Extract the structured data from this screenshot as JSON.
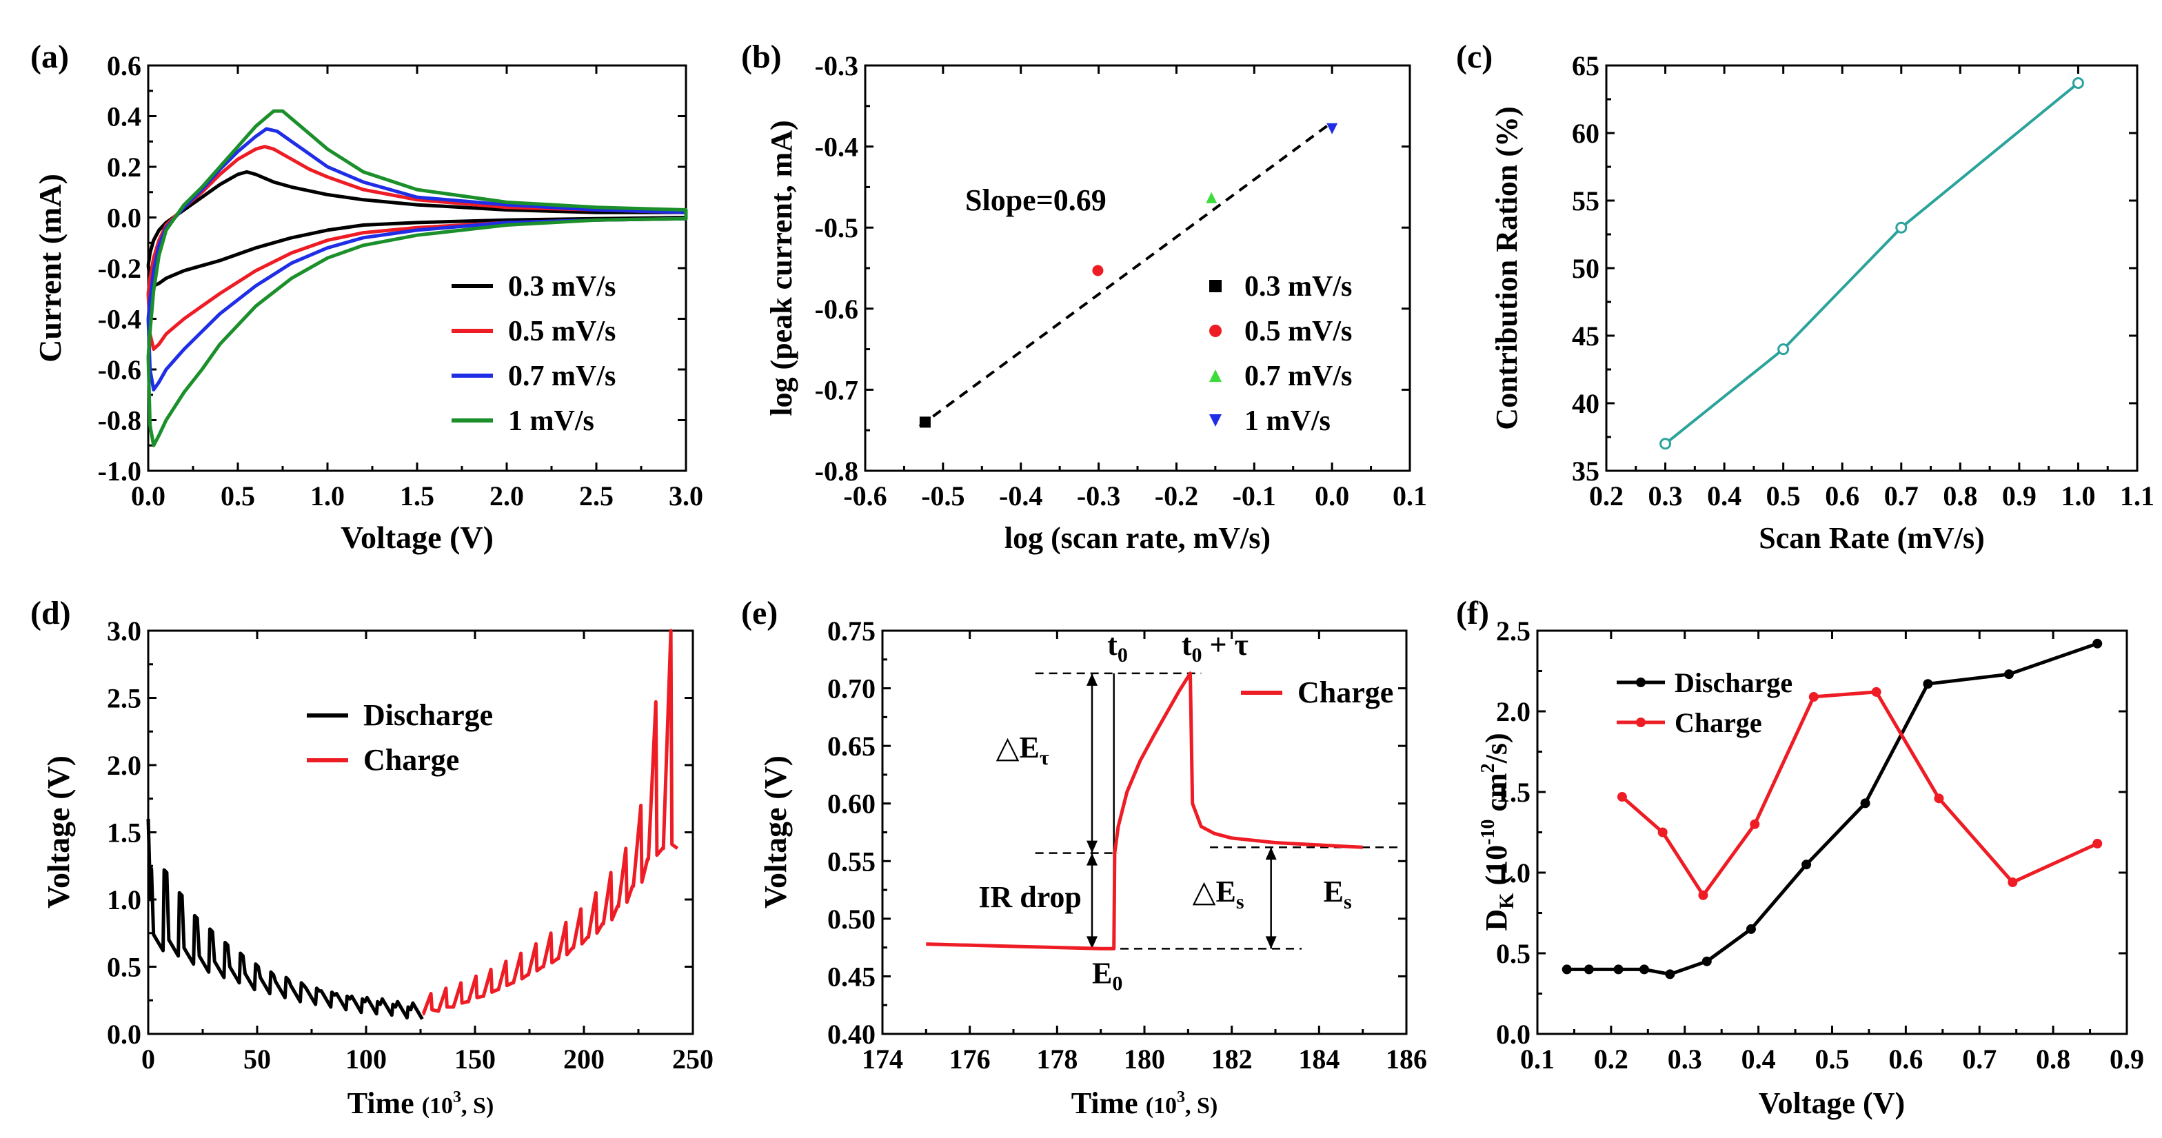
{
  "colors": {
    "black": "#000000",
    "red": "#ee1c24",
    "blue": "#1f2ee6",
    "green": "#1a8f2a",
    "bright_green": "#3ddc3d",
    "teal": "#2aa39b",
    "axis": "#000000"
  },
  "chart_data": [
    {
      "panel_label": "(a)",
      "type": "line",
      "xlabel": "Voltage (V)",
      "ylabel": "Current (mA)",
      "xlim": [
        0.0,
        3.0
      ],
      "ylim": [
        -1.0,
        0.6
      ],
      "xticks": [
        "0.0",
        "0.5",
        "1.0",
        "1.5",
        "2.0",
        "2.5",
        "3.0"
      ],
      "yticks": [
        "-1.0",
        "-0.8",
        "-0.6",
        "-0.4",
        "-0.2",
        "0.0",
        "0.2",
        "0.4",
        "0.6"
      ],
      "legend": [
        "0.3 mV/s",
        "0.5 mV/s",
        "0.7 mV/s",
        "1 mV/s"
      ],
      "legend_position": "bottom-right",
      "series": [
        {
          "name": "0.3 mV/s",
          "color_key": "black",
          "x": [
            0,
            0.01,
            0.03,
            0.06,
            0.1,
            0.2,
            0.3,
            0.4,
            0.5,
            0.55,
            0.6,
            0.7,
            0.8,
            1.0,
            1.2,
            1.5,
            2.0,
            2.5,
            3.0,
            3.0,
            2.5,
            2.0,
            1.5,
            1.2,
            1.0,
            0.8,
            0.6,
            0.4,
            0.3,
            0.2,
            0.1,
            0.06,
            0.03,
            0.01,
            0
          ],
          "y": [
            -0.19,
            -0.14,
            -0.09,
            -0.05,
            -0.02,
            0.03,
            0.08,
            0.13,
            0.17,
            0.18,
            0.17,
            0.14,
            0.12,
            0.09,
            0.07,
            0.05,
            0.03,
            0.02,
            0.02,
            0.0,
            -0.005,
            -0.01,
            -0.02,
            -0.03,
            -0.05,
            -0.08,
            -0.12,
            -0.17,
            -0.19,
            -0.21,
            -0.24,
            -0.26,
            -0.27,
            -0.24,
            -0.19
          ]
        },
        {
          "name": "0.5 mV/s",
          "color_key": "red",
          "x": [
            0,
            0.01,
            0.03,
            0.06,
            0.1,
            0.2,
            0.3,
            0.4,
            0.5,
            0.6,
            0.65,
            0.7,
            0.8,
            0.9,
            1.0,
            1.2,
            1.5,
            2.0,
            2.5,
            3.0,
            3.0,
            2.5,
            2.0,
            1.5,
            1.2,
            1.0,
            0.8,
            0.6,
            0.4,
            0.3,
            0.2,
            0.1,
            0.06,
            0.03,
            0.01,
            0
          ],
          "y": [
            -0.3,
            -0.24,
            -0.16,
            -0.09,
            -0.03,
            0.04,
            0.1,
            0.17,
            0.23,
            0.27,
            0.28,
            0.27,
            0.23,
            0.19,
            0.16,
            0.11,
            0.07,
            0.04,
            0.03,
            0.02,
            -0.005,
            -0.01,
            -0.02,
            -0.04,
            -0.06,
            -0.09,
            -0.14,
            -0.21,
            -0.3,
            -0.35,
            -0.4,
            -0.46,
            -0.5,
            -0.52,
            -0.46,
            -0.3
          ]
        },
        {
          "name": "0.7 mV/s",
          "color_key": "blue",
          "x": [
            0,
            0.01,
            0.03,
            0.06,
            0.1,
            0.2,
            0.3,
            0.4,
            0.5,
            0.6,
            0.66,
            0.72,
            0.8,
            0.9,
            1.0,
            1.2,
            1.5,
            2.0,
            2.5,
            3.0,
            3.0,
            2.5,
            2.0,
            1.5,
            1.2,
            1.0,
            0.8,
            0.6,
            0.4,
            0.3,
            0.2,
            0.1,
            0.06,
            0.03,
            0.01,
            0
          ],
          "y": [
            -0.4,
            -0.32,
            -0.21,
            -0.11,
            -0.04,
            0.04,
            0.11,
            0.19,
            0.26,
            0.32,
            0.35,
            0.34,
            0.3,
            0.25,
            0.2,
            0.14,
            0.08,
            0.05,
            0.03,
            0.02,
            -0.005,
            -0.01,
            -0.02,
            -0.05,
            -0.08,
            -0.12,
            -0.18,
            -0.27,
            -0.38,
            -0.45,
            -0.52,
            -0.6,
            -0.65,
            -0.68,
            -0.6,
            -0.4
          ]
        },
        {
          "name": "1 mV/s",
          "color_key": "green",
          "x": [
            0,
            0.01,
            0.03,
            0.06,
            0.1,
            0.2,
            0.3,
            0.4,
            0.5,
            0.6,
            0.7,
            0.75,
            0.8,
            0.9,
            1.0,
            1.2,
            1.5,
            2.0,
            2.5,
            3.0,
            3.0,
            2.5,
            2.0,
            1.5,
            1.2,
            1.0,
            0.8,
            0.6,
            0.4,
            0.3,
            0.2,
            0.1,
            0.06,
            0.03,
            0.01,
            0
          ],
          "y": [
            -0.55,
            -0.45,
            -0.29,
            -0.15,
            -0.05,
            0.05,
            0.12,
            0.2,
            0.28,
            0.36,
            0.42,
            0.42,
            0.39,
            0.33,
            0.27,
            0.18,
            0.11,
            0.06,
            0.04,
            0.03,
            -0.005,
            -0.01,
            -0.03,
            -0.07,
            -0.11,
            -0.16,
            -0.24,
            -0.35,
            -0.5,
            -0.6,
            -0.69,
            -0.8,
            -0.86,
            -0.9,
            -0.82,
            -0.55
          ]
        }
      ]
    },
    {
      "panel_label": "(b)",
      "type": "scatter",
      "xlabel": "log (scan rate, mV/s)",
      "ylabel": "log (peak current, mA)",
      "xlim": [
        -0.6,
        0.1
      ],
      "ylim": [
        -0.8,
        -0.3
      ],
      "xticks": [
        "-0.6",
        "-0.5",
        "-0.4",
        "-0.3",
        "-0.2",
        "-0.1",
        "0.0",
        "0.1"
      ],
      "yticks": [
        "-0.8",
        "-0.7",
        "-0.6",
        "-0.5",
        "-0.4",
        "-0.3"
      ],
      "annotation": "Slope=0.69",
      "fit_line": {
        "x": [
          -0.53,
          0.0
        ],
        "y": [
          -0.745,
          -0.37
        ]
      },
      "legend": [
        "0.3 mV/s",
        "0.5 mV/s",
        "0.7 mV/s",
        "1 mV/s"
      ],
      "legend_position": "bottom-right",
      "series": [
        {
          "name": "0.3 mV/s",
          "color_key": "black",
          "marker": "square",
          "x": [
            -0.523
          ],
          "y": [
            -0.74
          ]
        },
        {
          "name": "0.5 mV/s",
          "color_key": "red",
          "marker": "circle",
          "x": [
            -0.301
          ],
          "y": [
            -0.553
          ]
        },
        {
          "name": "0.7 mV/s",
          "color_key": "bright_green",
          "marker": "triangle-up",
          "x": [
            -0.155
          ],
          "y": [
            -0.463
          ]
        },
        {
          "name": "1 mV/s",
          "color_key": "blue",
          "marker": "triangle-down",
          "x": [
            0.0
          ],
          "y": [
            -0.378
          ]
        }
      ]
    },
    {
      "panel_label": "(c)",
      "type": "line",
      "xlabel": "Scan Rate (mV/s)",
      "ylabel": "Contribution Ration (%)",
      "xlim": [
        0.2,
        1.1
      ],
      "ylim": [
        35,
        65
      ],
      "xticks": [
        "0.2",
        "0.3",
        "0.4",
        "0.5",
        "0.6",
        "0.7",
        "0.8",
        "0.9",
        "1.0",
        "1.1"
      ],
      "yticks": [
        "35",
        "40",
        "45",
        "50",
        "55",
        "60",
        "65"
      ],
      "series": [
        {
          "name": "Contribution",
          "color_key": "teal",
          "marker": "circle-open",
          "x": [
            0.3,
            0.5,
            0.7,
            1.0
          ],
          "y": [
            37,
            44,
            53,
            63.7
          ]
        }
      ]
    },
    {
      "panel_label": "(d)",
      "type": "line",
      "xlabel_main": "Time ",
      "xlabel_unit": "(10",
      "xlabel_sup": "3",
      "xlabel_tail": ", S)",
      "ylabel": "Voltage (V)",
      "xlim": [
        0,
        250
      ],
      "ylim": [
        0.0,
        3.0
      ],
      "xticks": [
        "0",
        "50",
        "100",
        "150",
        "200",
        "250"
      ],
      "yticks": [
        "0.0",
        "0.5",
        "1.0",
        "1.5",
        "2.0",
        "2.5",
        "3.0"
      ],
      "legend": [
        "Discharge",
        "Charge"
      ],
      "legend_position": "top-center",
      "discharge": {
        "name": "Discharge",
        "color_key": "black",
        "t_start": 0,
        "t_end": 126,
        "pulses": 18,
        "relax_v": [
          1.25,
          1.22,
          1.05,
          0.88,
          0.78,
          0.68,
          0.6,
          0.52,
          0.46,
          0.42,
          0.38,
          0.34,
          0.31,
          0.28,
          0.26,
          0.24,
          0.22,
          0.2
        ],
        "end_v": [
          0.62,
          0.58,
          0.52,
          0.46,
          0.42,
          0.38,
          0.33,
          0.3,
          0.27,
          0.24,
          0.22,
          0.2,
          0.18,
          0.16,
          0.15,
          0.14,
          0.12,
          0.11
        ]
      },
      "charge": {
        "name": "Charge",
        "color_key": "red",
        "t_start": 126,
        "t_end": 243,
        "pulses": 17,
        "base_v": [
          0.15,
          0.17,
          0.2,
          0.24,
          0.28,
          0.33,
          0.38,
          0.44,
          0.5,
          0.56,
          0.64,
          0.72,
          0.82,
          0.95,
          1.1,
          1.3,
          1.38
        ],
        "peak_v": [
          0.3,
          0.34,
          0.38,
          0.43,
          0.48,
          0.54,
          0.6,
          0.67,
          0.75,
          0.83,
          0.93,
          1.05,
          1.2,
          1.38,
          1.7,
          2.47,
          3.0
        ]
      }
    },
    {
      "panel_label": "(e)",
      "type": "line",
      "xlabel_main": "Time ",
      "xlabel_unit": "(10",
      "xlabel_sup": "3",
      "xlabel_tail": ", S)",
      "ylabel": "Voltage (V)",
      "xlim": [
        174,
        186
      ],
      "ylim": [
        0.4,
        0.75
      ],
      "xticks": [
        "174",
        "176",
        "178",
        "180",
        "182",
        "184",
        "186"
      ],
      "yticks": [
        "0.40",
        "0.45",
        "0.50",
        "0.55",
        "0.60",
        "0.65",
        "0.70",
        "0.75"
      ],
      "legend": [
        "Charge"
      ],
      "legend_position": "top-right",
      "series": [
        {
          "name": "Charge",
          "color_key": "red",
          "x": [
            175,
            176,
            177,
            178,
            179,
            179.3,
            179.32,
            179.4,
            179.6,
            179.9,
            180.2,
            180.5,
            180.8,
            181.05,
            181.1,
            181.3,
            181.6,
            182,
            182.5,
            183,
            183.5,
            184,
            184.5,
            185
          ],
          "y": [
            0.478,
            0.477,
            0.476,
            0.475,
            0.474,
            0.474,
            0.557,
            0.58,
            0.61,
            0.637,
            0.658,
            0.678,
            0.698,
            0.713,
            0.6,
            0.58,
            0.574,
            0.57,
            0.568,
            0.566,
            0.565,
            0.564,
            0.563,
            0.562
          ]
        }
      ],
      "annotations": {
        "t0_main": "t",
        "t0_sub": "0",
        "t0tau_main": "t",
        "t0tau_sub": "0",
        "t0tau_tail": " + τ",
        "dEtau_main": "△E",
        "dEtau_sub": "τ",
        "ir_drop": "IR drop",
        "dEs_main": "△E",
        "dEs_sub": "s",
        "Es_main": "E",
        "Es_sub": "s",
        "E0_main": "E",
        "E0_sub": "0"
      }
    },
    {
      "panel_label": "(f)",
      "type": "line",
      "xlabel": "Voltage (V)",
      "ylabel_main": "D",
      "ylabel_sub": "K",
      "ylabel_mid": " (10",
      "ylabel_sup1": "-10",
      "ylabel_mid2": " cm",
      "ylabel_sup2": "2",
      "ylabel_tail": "/s)",
      "xlim": [
        0.1,
        0.9
      ],
      "ylim": [
        0.0,
        2.5
      ],
      "xticks": [
        "0.1",
        "0.2",
        "0.3",
        "0.4",
        "0.5",
        "0.6",
        "0.7",
        "0.8",
        "0.9"
      ],
      "yticks": [
        "0.0",
        "0.5",
        "1.0",
        "1.5",
        "2.0",
        "2.5"
      ],
      "legend": [
        "Discharge",
        "Charge"
      ],
      "legend_position": "top-left",
      "series": [
        {
          "name": "Discharge",
          "color_key": "black",
          "x": [
            0.14,
            0.17,
            0.21,
            0.245,
            0.28,
            0.33,
            0.39,
            0.465,
            0.545,
            0.63,
            0.74,
            0.86
          ],
          "y": [
            0.4,
            0.4,
            0.4,
            0.4,
            0.37,
            0.45,
            0.65,
            1.05,
            1.43,
            2.17,
            2.23,
            2.42
          ]
        },
        {
          "name": "Charge",
          "color_key": "red",
          "x": [
            0.215,
            0.27,
            0.325,
            0.395,
            0.475,
            0.56,
            0.645,
            0.745,
            0.86
          ],
          "y": [
            1.47,
            1.25,
            0.86,
            1.3,
            2.09,
            2.12,
            1.46,
            0.94,
            1.18
          ]
        }
      ]
    }
  ]
}
